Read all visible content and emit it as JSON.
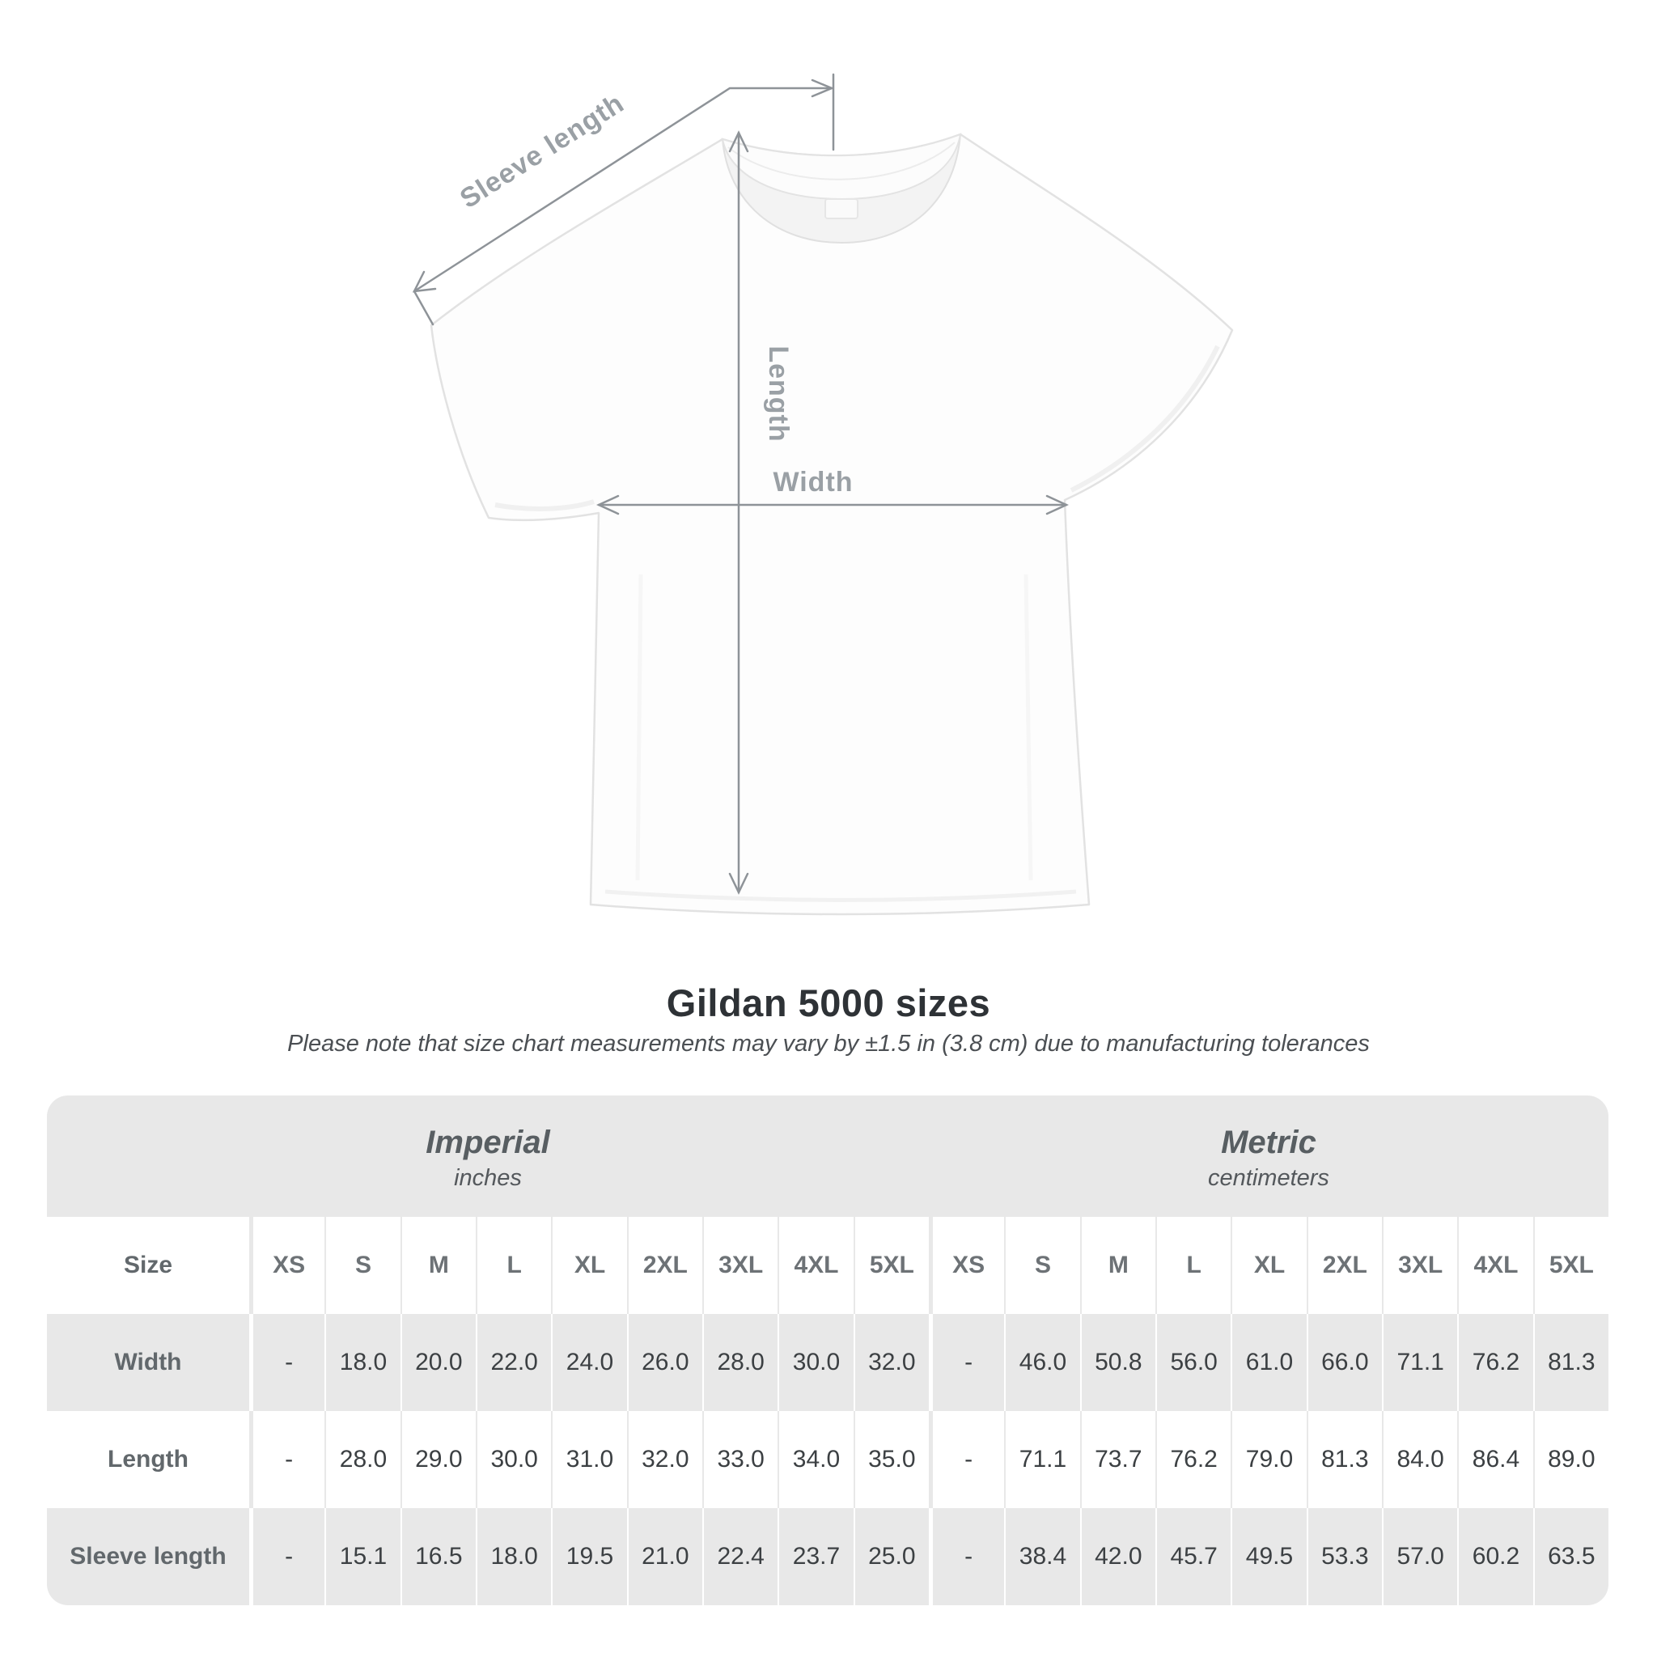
{
  "diagram": {
    "labels": {
      "sleeve_length": "Sleeve length",
      "length": "Length",
      "width": "Width"
    }
  },
  "title": "Gildan 5000 sizes",
  "subtitle": "Please note that size chart measurements may vary by ±1.5 in (3.8 cm) due to manufacturing tolerances",
  "chart_data": {
    "type": "table",
    "title": "Gildan 5000 sizes",
    "unit_groups": [
      {
        "name": "Imperial",
        "unit": "inches"
      },
      {
        "name": "Metric",
        "unit": "centimeters"
      }
    ],
    "size_header_label": "Size",
    "sizes": [
      "XS",
      "S",
      "M",
      "L",
      "XL",
      "2XL",
      "3XL",
      "4XL",
      "5XL"
    ],
    "rows": [
      {
        "label": "Width",
        "imperial": [
          "-",
          "18.0",
          "20.0",
          "22.0",
          "24.0",
          "26.0",
          "28.0",
          "30.0",
          "32.0"
        ],
        "metric": [
          "-",
          "46.0",
          "50.8",
          "56.0",
          "61.0",
          "66.0",
          "71.1",
          "76.2",
          "81.3"
        ]
      },
      {
        "label": "Length",
        "imperial": [
          "-",
          "28.0",
          "29.0",
          "30.0",
          "31.0",
          "32.0",
          "33.0",
          "34.0",
          "35.0"
        ],
        "metric": [
          "-",
          "71.1",
          "73.7",
          "76.2",
          "79.0",
          "81.3",
          "84.0",
          "86.4",
          "89.0"
        ]
      },
      {
        "label": "Sleeve length",
        "imperial": [
          "-",
          "15.1",
          "16.5",
          "18.0",
          "19.5",
          "21.0",
          "22.4",
          "23.7",
          "25.0"
        ],
        "metric": [
          "-",
          "38.4",
          "42.0",
          "45.7",
          "49.5",
          "53.3",
          "57.0",
          "60.2",
          "63.5"
        ]
      }
    ]
  },
  "colors": {
    "table_band": "#e8e8e8",
    "arrow_gray": "#8e9398",
    "label_gray": "#9aa0a5"
  }
}
